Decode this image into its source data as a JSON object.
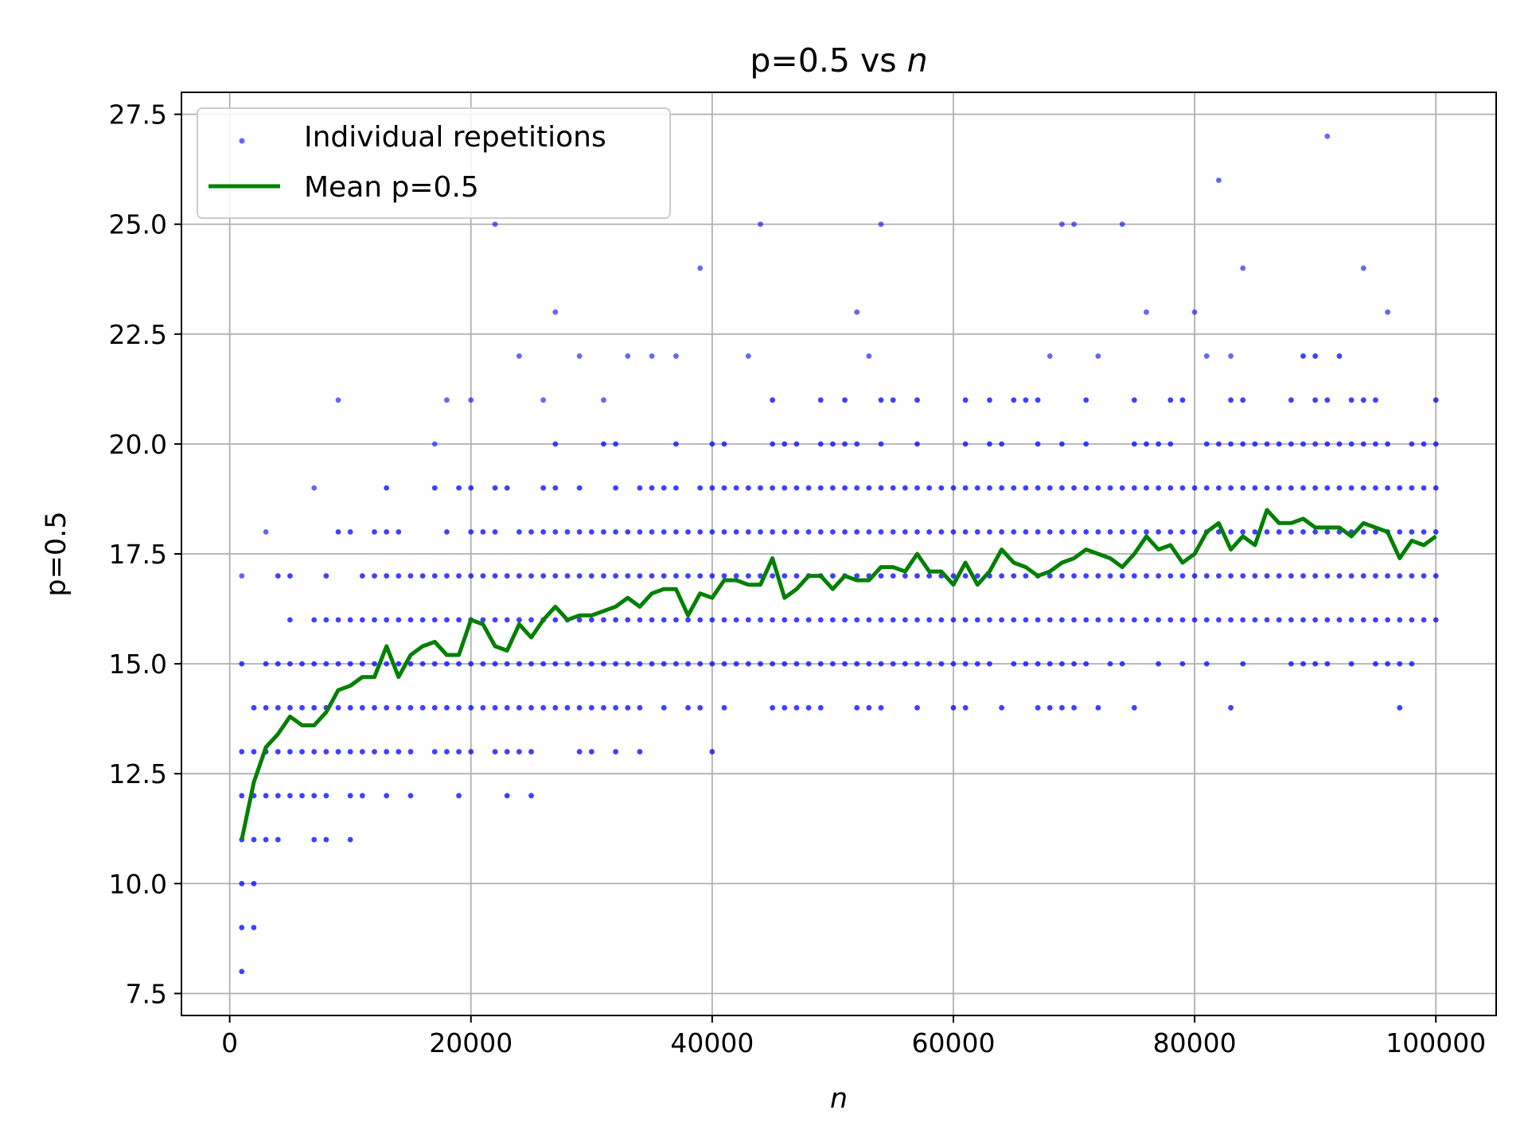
{
  "chart_data": {
    "type": "scatter",
    "title": "p=0.5 vs ",
    "title_italic": "n",
    "xlabel": "n",
    "ylabel": "p=0.5",
    "xlim": [
      -4000,
      105000
    ],
    "ylim": [
      7.0,
      28.0
    ],
    "xticks": [
      0,
      20000,
      40000,
      60000,
      80000,
      100000
    ],
    "xtick_labels": [
      "0",
      "20000",
      "40000",
      "60000",
      "80000",
      "100000"
    ],
    "yticks": [
      7.5,
      10.0,
      12.5,
      15.0,
      17.5,
      20.0,
      22.5,
      25.0,
      27.5
    ],
    "ytick_labels": [
      "7.5",
      "10.0",
      "12.5",
      "15.0",
      "17.5",
      "20.0",
      "22.5",
      "25.0",
      "27.5"
    ],
    "grid": true,
    "legend_position": "top-left",
    "colors": {
      "scatter": "#0000ff",
      "mean": "#008000"
    },
    "series": [
      {
        "name": "Individual repetitions",
        "kind": "scatter",
        "color": "#0000ff"
      },
      {
        "name": "Mean p=0.5",
        "kind": "line",
        "color": "#008000",
        "x": [
          1000,
          2000,
          3000,
          4000,
          5000,
          6000,
          7000,
          8000,
          9000,
          10000,
          11000,
          12000,
          13000,
          14000,
          15000,
          16000,
          17000,
          18000,
          19000,
          20000,
          21000,
          22000,
          23000,
          24000,
          25000,
          26000,
          27000,
          28000,
          29000,
          30000,
          31000,
          32000,
          33000,
          34000,
          35000,
          36000,
          37000,
          38000,
          39000,
          40000,
          41000,
          42000,
          43000,
          44000,
          45000,
          46000,
          47000,
          48000,
          49000,
          50000,
          51000,
          52000,
          53000,
          54000,
          55000,
          56000,
          57000,
          58000,
          59000,
          60000,
          61000,
          62000,
          63000,
          64000,
          65000,
          66000,
          67000,
          68000,
          69000,
          70000,
          71000,
          72000,
          73000,
          74000,
          75000,
          76000,
          77000,
          78000,
          79000,
          80000,
          81000,
          82000,
          83000,
          84000,
          85000,
          86000,
          87000,
          88000,
          89000,
          90000,
          91000,
          92000,
          93000,
          94000,
          95000,
          96000,
          97000,
          98000,
          99000,
          100000
        ],
        "y": [
          11.0,
          12.3,
          13.1,
          13.4,
          13.8,
          13.6,
          13.6,
          13.9,
          14.4,
          14.5,
          14.7,
          14.7,
          15.4,
          14.7,
          15.2,
          15.4,
          15.5,
          15.2,
          15.2,
          16.0,
          15.9,
          15.4,
          15.3,
          15.9,
          15.6,
          16.0,
          16.3,
          16.0,
          16.1,
          16.1,
          16.2,
          16.3,
          16.5,
          16.3,
          16.6,
          16.7,
          16.7,
          16.1,
          16.6,
          16.5,
          16.9,
          16.9,
          16.8,
          16.8,
          17.4,
          16.5,
          16.7,
          17.0,
          17.0,
          16.7,
          17.0,
          16.9,
          16.9,
          17.2,
          17.2,
          17.1,
          17.5,
          17.1,
          17.1,
          16.8,
          17.3,
          16.8,
          17.1,
          17.6,
          17.3,
          17.2,
          17.0,
          17.1,
          17.3,
          17.4,
          17.6,
          17.5,
          17.4,
          17.2,
          17.5,
          17.9,
          17.6,
          17.7,
          17.3,
          17.5,
          18.0,
          18.2,
          17.6,
          17.9,
          17.7,
          18.5,
          18.2,
          18.2,
          18.3,
          18.1,
          18.1,
          18.1,
          17.9,
          18.2,
          18.1,
          18.0,
          17.4,
          17.8,
          17.7,
          17.9
        ]
      }
    ]
  }
}
